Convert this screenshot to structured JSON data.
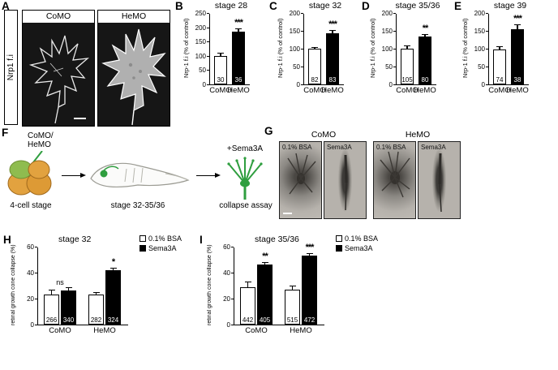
{
  "colors": {
    "control_bar": "#ffffff",
    "treatment_bar": "#000000",
    "accent_green": "#2f9e3f",
    "embryo_orange": "#e2a23f"
  },
  "panels": {
    "a": {
      "letter": "A",
      "side_label": "Nrp1 f.i",
      "images": [
        {
          "label": "CoMO"
        },
        {
          "label": "HeMO"
        }
      ]
    },
    "b": {
      "letter": "B"
    },
    "c": {
      "letter": "C"
    },
    "d": {
      "letter": "D"
    },
    "e": {
      "letter": "E"
    },
    "f": {
      "letter": "F",
      "injection_label": "CoMO/\nHeMO",
      "stage_start": "4-cell stage",
      "stage_mid": "stage 32-35/36",
      "treatment": "+Sema3A",
      "assay": "collapse assay"
    },
    "g": {
      "letter": "G",
      "groups": [
        {
          "label": "CoMO",
          "conditions": [
            "0.1% BSA",
            "Sema3A"
          ]
        },
        {
          "label": "HeMO",
          "conditions": [
            "0.1% BSA",
            "Sema3A"
          ]
        }
      ]
    },
    "h": {
      "letter": "H"
    },
    "i": {
      "letter": "I"
    }
  },
  "chart_data": [
    {
      "id": "B",
      "type": "bar",
      "title": "stage 28",
      "ylabel": "Nrp-1 f.i (% of control)",
      "ylim": [
        0,
        250
      ],
      "yticks": [
        0,
        50,
        100,
        150,
        200,
        250
      ],
      "categories": [
        "CoMO",
        "HeMO"
      ],
      "values": [
        100,
        185
      ],
      "errors": [
        12,
        10
      ],
      "n": [
        30,
        36
      ],
      "bar_colors": [
        "#ffffff",
        "#000000"
      ],
      "significance": "***"
    },
    {
      "id": "C",
      "type": "bar",
      "title": "stage 32",
      "ylabel": "Nrp-1 f.i (% of control)",
      "ylim": [
        0,
        200
      ],
      "yticks": [
        0,
        50,
        100,
        150,
        200
      ],
      "categories": [
        "CoMO",
        "HeMO"
      ],
      "values": [
        100,
        143
      ],
      "errors": [
        5,
        10
      ],
      "n": [
        82,
        83
      ],
      "bar_colors": [
        "#ffffff",
        "#000000"
      ],
      "significance": "***"
    },
    {
      "id": "D",
      "type": "bar",
      "title": "stage 35/36",
      "ylabel": "Nrp-1 f.i (% of control)",
      "ylim": [
        0,
        200
      ],
      "yticks": [
        0,
        50,
        100,
        150,
        200
      ],
      "categories": [
        "CoMO",
        "HeMO"
      ],
      "values": [
        100,
        133
      ],
      "errors": [
        8,
        8
      ],
      "n": [
        105,
        80
      ],
      "bar_colors": [
        "#ffffff",
        "#000000"
      ],
      "significance": "**"
    },
    {
      "id": "E",
      "type": "bar",
      "title": "stage 39",
      "ylabel": "Nrp-1 f.i (% of control)",
      "ylim": [
        0,
        200
      ],
      "yticks": [
        0,
        50,
        100,
        150,
        200
      ],
      "categories": [
        "CoMO",
        "HeMO"
      ],
      "values": [
        97,
        155
      ],
      "errors": [
        10,
        13
      ],
      "n": [
        74,
        38
      ],
      "bar_colors": [
        "#ffffff",
        "#000000"
      ],
      "significance": "***"
    },
    {
      "id": "H",
      "type": "grouped-bar",
      "title": "stage 32",
      "ylabel": "retinal growth cone collapse (%)",
      "ylim": [
        0,
        60
      ],
      "yticks": [
        0,
        20,
        40,
        60
      ],
      "categories": [
        "CoMO",
        "HeMO"
      ],
      "series": [
        {
          "name": "0.1% BSA",
          "color": "#ffffff",
          "values": [
            23,
            23
          ],
          "errors": [
            4,
            2
          ],
          "n": [
            266,
            282
          ]
        },
        {
          "name": "Sema3A",
          "color": "#000000",
          "values": [
            26,
            42
          ],
          "errors": [
            3,
            2
          ],
          "n": [
            340,
            324
          ]
        }
      ],
      "significance": [
        "ns",
        "*"
      ]
    },
    {
      "id": "I",
      "type": "grouped-bar",
      "title": "stage 35/36",
      "ylabel": "retinal growth cone collapse (%)",
      "ylim": [
        0,
        60
      ],
      "yticks": [
        0,
        20,
        40,
        60
      ],
      "categories": [
        "CoMO",
        "HeMO"
      ],
      "series": [
        {
          "name": "0.1% BSA",
          "color": "#ffffff",
          "values": [
            29,
            27
          ],
          "errors": [
            4,
            3
          ],
          "n": [
            442,
            515
          ]
        },
        {
          "name": "Sema3A",
          "color": "#000000",
          "values": [
            46,
            53
          ],
          "errors": [
            2,
            2
          ],
          "n": [
            405,
            472
          ]
        }
      ],
      "significance": [
        "**",
        "***"
      ]
    }
  ]
}
